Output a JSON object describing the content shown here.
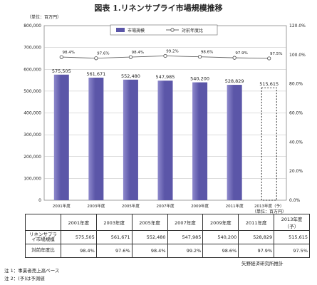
{
  "title": "図表 1.リネンサプライ市場規模推移",
  "chart_unit": "（単位：百万円）",
  "table_unit": "（単位：百万円）",
  "chart_data": {
    "type": "bar",
    "categories": [
      "2001年度",
      "2003年度",
      "2005年度",
      "2007年度",
      "2009年度",
      "2011年度",
      "2013年度（予）"
    ],
    "series": [
      {
        "name": "市場規模",
        "type": "bar",
        "axis": "left",
        "values": [
          575505,
          561671,
          552480,
          547985,
          540200,
          528829,
          515615
        ],
        "labels": [
          "575,505",
          "561,671",
          "552,480",
          "547,985",
          "540,200",
          "528,829",
          "515,615"
        ],
        "forecast_index": 6
      },
      {
        "name": "対前年度比",
        "type": "line",
        "axis": "right",
        "values": [
          98.4,
          97.6,
          98.4,
          99.2,
          98.6,
          97.9,
          97.5
        ],
        "labels": [
          "98.4%",
          "97.6%",
          "98.4%",
          "99.2%",
          "98.6%",
          "97.9%",
          "97.5%"
        ]
      }
    ],
    "y_left": {
      "min": 0,
      "max": 800000,
      "step": 100000,
      "ticks": [
        "0",
        "100,000",
        "200,000",
        "300,000",
        "400,000",
        "500,000",
        "600,000",
        "700,000",
        "800,000"
      ]
    },
    "y_right": {
      "min": 0,
      "max": 120,
      "step": 20,
      "ticks": [
        "0.0%",
        "20.0%",
        "40.0%",
        "60.0%",
        "80.0%",
        "100.0%",
        "120.0%"
      ]
    },
    "legend_position": "top",
    "grid": true,
    "colors": {
      "bar": "#5b56a8",
      "bar_light": "#8e89cc",
      "forecast_border": "#000000",
      "line": "#666666"
    }
  },
  "table": {
    "headers": [
      "",
      "2001年度",
      "2003年度",
      "2005年度",
      "2007年度",
      "2009年度",
      "2011年度",
      "2013年度（予）"
    ],
    "rows": [
      {
        "label": "リネンサプライ市場規模",
        "values": [
          "575,505",
          "561,671",
          "552,480",
          "547,985",
          "540,200",
          "528,829",
          "515,615"
        ]
      },
      {
        "label": "対前年度比",
        "values": [
          "98.4%",
          "97.6%",
          "98.4%",
          "99.2%",
          "98.6%",
          "97.9%",
          "97.5%"
        ]
      }
    ]
  },
  "source": "矢野経済研究所推計",
  "notes": [
    "注 1：事業者売上高ベース",
    "注 2：(予)は予測値"
  ]
}
